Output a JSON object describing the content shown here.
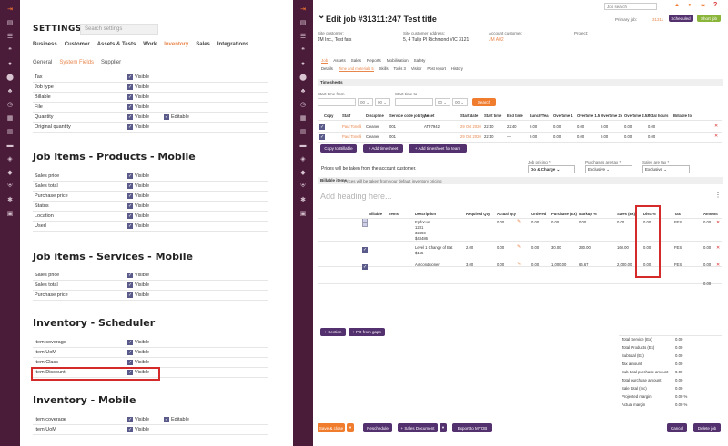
{
  "left_sidebar_icons": [
    "exit-icon",
    "document-icon",
    "list-icon",
    "quote-icon",
    "user-icon",
    "location-icon",
    "group-icon",
    "clock-icon",
    "calendar-icon",
    "chart-icon",
    "folder-icon",
    "box-icon",
    "tag-icon",
    "shield-icon",
    "settings-icon",
    "book-icon"
  ],
  "settings": {
    "title": "SETTINGS",
    "search_placeholder": "Search settings",
    "tabs": [
      "Business",
      "Customer",
      "Assets & Tests",
      "Work",
      "Inventory",
      "Sales",
      "Integrations"
    ],
    "active_tab": "Inventory",
    "subtabs": [
      "General",
      "System Fields",
      "Supplier"
    ],
    "active_subtab": "System Fields",
    "visible_label": "Visible",
    "editable_label": "Editable",
    "top_rows": [
      {
        "label": "Tax"
      },
      {
        "label": "Job type"
      },
      {
        "label": "Billable"
      },
      {
        "label": "File"
      },
      {
        "label": "Quantity",
        "editable": true
      },
      {
        "label": "Original quantity"
      }
    ],
    "products_heading": "Job items - Products - Mobile",
    "products_rows": [
      {
        "label": "Sales price"
      },
      {
        "label": "Sales total"
      },
      {
        "label": "Purchase price"
      },
      {
        "label": "Status"
      },
      {
        "label": "Location"
      },
      {
        "label": "Used"
      }
    ],
    "services_heading": "Job items - Services - Mobile",
    "services_rows": [
      {
        "label": "Sales price"
      },
      {
        "label": "Sales total"
      },
      {
        "label": "Purchase price"
      }
    ],
    "scheduler_heading": "Inventory - Scheduler",
    "scheduler_rows": [
      {
        "label": "Item coverage"
      },
      {
        "label": "Item UoM"
      },
      {
        "label": "Item Class"
      },
      {
        "label": "Item Discount"
      }
    ],
    "mobile_heading": "Inventory - Mobile",
    "mobile_rows": [
      {
        "label": "Item coverage",
        "editable": true
      },
      {
        "label": "Item UoM"
      }
    ]
  },
  "job": {
    "title": "Edit job #31311:247 Test title",
    "top_search": "Job search",
    "primary_job_label": "Primary job:",
    "primary_job_value": "31311",
    "scheduled_btn": "Scheduled",
    "short_job_btn": "Short job",
    "site_customer_label": "Site customer:",
    "site_customer_value": "JM Inc., Test fats",
    "site_address_label": "Site customer address:",
    "site_address_value": "5, 4 Tulip Pl Richmond VIC 3121",
    "account_label": "Account customer:",
    "account_value": "JM A02",
    "project_label": "Project:",
    "tabs": [
      "Job",
      "Assets",
      "Sales",
      "Reports",
      "Mobilisation",
      "Safety"
    ],
    "subtabs": [
      "Details",
      "Time and materials 5",
      "Skills",
      "Tools 3",
      "Visitor",
      "Post report",
      "History"
    ],
    "timesheets_label": "Timesheets",
    "start_time_from": "Start time from",
    "start_time_to": "Start time to",
    "search_btn": "Search",
    "ts_headers": [
      "Copy",
      "Staff",
      "Discipline",
      "Service code job type",
      "Asset",
      "Start date",
      "Start time",
      "End time",
      "Lunch/Tea",
      "Overtime 1",
      "Overtime 1.5",
      "Overtime 2x",
      "Overtime 2.5x",
      "Total hours",
      "Billable to"
    ],
    "ts_rows": [
      [
        "Paul Tonelli",
        "Cleaner",
        "001",
        "ATF7942",
        "29 Oct 2020",
        "22:40",
        "22:40",
        "0.00",
        "0.00",
        "0.00",
        "0.00",
        "0.00",
        "0.00"
      ],
      [
        "Paul Tonelli",
        "Cleaner",
        "001",
        "",
        "29 Oct 2020",
        "22:40",
        "—",
        "0.00",
        "0.00",
        "0.00",
        "0.00",
        "0.00",
        "0.00"
      ]
    ],
    "copy_btn": "Copy to Billable",
    "add_ts_btn": "+ Add timesheet",
    "add_ts_team_btn": "+ Add timesheet for team",
    "price_note": "Prices will be taken from the account customer.",
    "job_pricing_label": "Job pricing *",
    "job_pricing_value": "Do & Charge",
    "purchases_tax_label": "Purchases are tax *",
    "purchases_tax_value": "Exclusive",
    "sales_tax_label": "Sales are tax *",
    "sales_tax_value": "Exclusive",
    "billable_items_label": "Billable items",
    "billable_note": "Prices will be taken from your default inventory pricing",
    "add_heading_placeholder": "Add heading here...",
    "bi_headers": [
      "Billable",
      "Items",
      "Description",
      "Required Qty",
      "Actual Qty",
      "Ordered",
      "Purchase (Ex)",
      "Markup %",
      "Sales (Ex)",
      "Disc %",
      "Tax",
      "Amount"
    ],
    "bi_rows": [
      {
        "desc": [
          "Epifocus",
          "1231",
          "32493",
          "$43486"
        ],
        "req": "",
        "act": "0.00",
        "ord": "0.00",
        "pur": "0.00",
        "mk": "0.00",
        "sales": "0.00",
        "disc": "0.00",
        "tax": "FES",
        "amt": "0.00"
      },
      {
        "desc": [
          "Level 1 Change of Bat",
          "$165"
        ],
        "req": "2.00",
        "act": "0.00",
        "ord": "0.00",
        "pur": "30.00",
        "mk": "230.00",
        "sales": "160.00",
        "disc": "0.00",
        "tax": "FES",
        "amt": "0.00"
      },
      {
        "desc": [
          "Air conditioner"
        ],
        "req": "3.00",
        "act": "0.00",
        "ord": "0.00",
        "pur": "1,000.00",
        "mk": "66.67",
        "sales": "2,000.00",
        "disc": "0.00",
        "tax": "FES",
        "amt": "0.00"
      }
    ],
    "total_amount": "0.00",
    "section_btn": "+ Section",
    "po_btn": "+ PO from gaps",
    "summary": [
      {
        "label": "Total Service (Ex)",
        "value": "0.00"
      },
      {
        "label": "Total Products (Ex)",
        "value": "0.00"
      },
      {
        "label": "Subtotal (Ex)",
        "value": "0.00"
      },
      {
        "label": "Tax amount",
        "value": "0.00"
      },
      {
        "label": "Sub total purchase amount",
        "value": "0.00"
      },
      {
        "label": "Total purchase amount",
        "value": "0.00"
      },
      {
        "label": "Sale total (Inc)",
        "value": "0.00"
      },
      {
        "label": "Projected margin",
        "value": "0.00 %"
      },
      {
        "label": "Actual margin",
        "value": "0.00 %"
      }
    ],
    "save_close_btn": "Save & close",
    "reschedule_btn": "Reschedule",
    "sales_doc_btn": "+ Sales Document",
    "export_btn": "Export to MYOB",
    "cancel_btn": "Cancel",
    "delete_btn": "Delete job"
  }
}
